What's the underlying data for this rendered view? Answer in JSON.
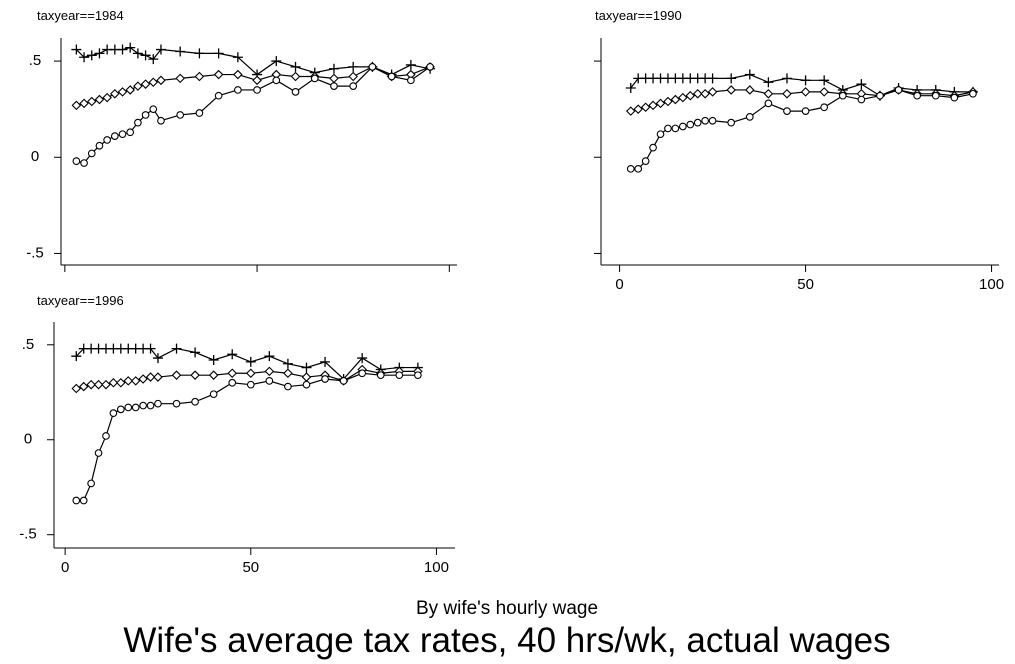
{
  "title": "Wife's average tax rates, 40 hrs/wk, actual wages",
  "xlabel": "By wife's hourly wage",
  "chart_data": [
    {
      "type": "line",
      "title": "taxyear==1984",
      "x": [
        3,
        5,
        7,
        9,
        11,
        13,
        15,
        17,
        19,
        21,
        23,
        25,
        30,
        35,
        40,
        45,
        50,
        55,
        60,
        65,
        70,
        75,
        80,
        85,
        90,
        95
      ],
      "series": [
        {
          "color": "#000000",
          "marker": "plus",
          "values": [
            0.56,
            0.52,
            0.53,
            0.54,
            0.56,
            0.56,
            0.56,
            0.57,
            0.54,
            0.53,
            0.51,
            0.56,
            0.55,
            0.54,
            0.54,
            0.52,
            0.43,
            0.5,
            0.47,
            0.44,
            0.46,
            0.47,
            0.47,
            0.43,
            0.48,
            0.46
          ]
        },
        {
          "color": "#000000",
          "marker": "diamond",
          "values": [
            0.27,
            0.28,
            0.29,
            0.3,
            0.31,
            0.33,
            0.34,
            0.35,
            0.37,
            0.38,
            0.39,
            0.4,
            0.41,
            0.42,
            0.43,
            0.43,
            0.4,
            0.43,
            0.42,
            0.42,
            0.41,
            0.42,
            0.47,
            0.42,
            0.43,
            0.47
          ]
        },
        {
          "color": "#000000",
          "marker": "circle",
          "values": [
            -0.02,
            -0.03,
            0.02,
            0.06,
            0.09,
            0.11,
            0.12,
            0.13,
            0.18,
            0.22,
            0.25,
            0.19,
            0.22,
            0.23,
            0.32,
            0.35,
            0.35,
            0.4,
            0.34,
            0.41,
            0.37,
            0.37,
            0.47,
            0.42,
            0.4,
            0.47
          ]
        }
      ],
      "xlim": [
        -1,
        102
      ],
      "ylim": [
        -0.56,
        0.62
      ],
      "xticks": [
        0,
        50,
        100
      ],
      "xtick_labels": false,
      "yticks": [
        {
          "value": -0.5,
          "label": "-.5"
        },
        0,
        {
          "value": 0.5,
          "label": ".5"
        }
      ],
      "ytick_labels": true
    },
    {
      "type": "line",
      "title": "taxyear==1990",
      "x": [
        3,
        5,
        7,
        9,
        11,
        13,
        15,
        17,
        19,
        21,
        23,
        25,
        30,
        35,
        40,
        45,
        50,
        55,
        60,
        65,
        70,
        75,
        80,
        85,
        90,
        95
      ],
      "series": [
        {
          "color": "#000000",
          "marker": "plus",
          "values": [
            0.36,
            0.41,
            0.41,
            0.41,
            0.41,
            0.41,
            0.41,
            0.41,
            0.41,
            0.41,
            0.41,
            0.41,
            0.41,
            0.43,
            0.39,
            0.41,
            0.4,
            0.4,
            0.35,
            0.38,
            0.32,
            0.36,
            0.35,
            0.35,
            0.34,
            0.34
          ]
        },
        {
          "color": "#000000",
          "marker": "diamond",
          "values": [
            0.24,
            0.25,
            0.26,
            0.27,
            0.28,
            0.29,
            0.3,
            0.31,
            0.32,
            0.33,
            0.33,
            0.34,
            0.35,
            0.35,
            0.33,
            0.33,
            0.34,
            0.34,
            0.33,
            0.33,
            0.32,
            0.35,
            0.33,
            0.33,
            0.32,
            0.34
          ]
        },
        {
          "color": "#000000",
          "marker": "circle",
          "values": [
            -0.06,
            -0.06,
            -0.02,
            0.05,
            0.12,
            0.15,
            0.15,
            0.16,
            0.17,
            0.18,
            0.19,
            0.19,
            0.18,
            0.21,
            0.28,
            0.24,
            0.24,
            0.26,
            0.32,
            0.3,
            0.32,
            0.35,
            0.32,
            0.32,
            0.31,
            0.33
          ]
        }
      ],
      "xlim": [
        -5,
        102
      ],
      "ylim": [
        -0.56,
        0.62
      ],
      "xticks": [
        0,
        50,
        100
      ],
      "xtick_labels": true,
      "yticks": [
        -0.5,
        0,
        0.5
      ],
      "ytick_labels": false
    },
    {
      "type": "line",
      "title": "taxyear==1996",
      "x": [
        3,
        5,
        7,
        9,
        11,
        13,
        15,
        17,
        19,
        21,
        23,
        25,
        30,
        35,
        40,
        45,
        50,
        55,
        60,
        65,
        70,
        75,
        80,
        85,
        90,
        95
      ],
      "series": [
        {
          "color": "#000000",
          "marker": "plus",
          "values": [
            0.44,
            0.48,
            0.48,
            0.48,
            0.48,
            0.48,
            0.48,
            0.48,
            0.48,
            0.48,
            0.48,
            0.43,
            0.48,
            0.46,
            0.42,
            0.45,
            0.41,
            0.44,
            0.4,
            0.38,
            0.41,
            0.32,
            0.43,
            0.37,
            0.38,
            0.38
          ]
        },
        {
          "color": "#000000",
          "marker": "diamond",
          "values": [
            0.27,
            0.28,
            0.29,
            0.29,
            0.29,
            0.3,
            0.3,
            0.31,
            0.31,
            0.32,
            0.33,
            0.33,
            0.34,
            0.34,
            0.34,
            0.35,
            0.35,
            0.36,
            0.35,
            0.33,
            0.34,
            0.31,
            0.37,
            0.35,
            0.36,
            0.36
          ]
        },
        {
          "color": "#000000",
          "marker": "circle",
          "values": [
            -0.32,
            -0.32,
            -0.23,
            -0.07,
            0.02,
            0.14,
            0.16,
            0.17,
            0.17,
            0.18,
            0.18,
            0.19,
            0.19,
            0.2,
            0.24,
            0.3,
            0.29,
            0.31,
            0.28,
            0.29,
            0.32,
            0.31,
            0.35,
            0.34,
            0.34,
            0.34
          ]
        }
      ],
      "xlim": [
        -3,
        105
      ],
      "ylim": [
        -0.57,
        0.62
      ],
      "xticks": [
        0,
        50,
        100
      ],
      "xtick_labels": true,
      "yticks": [
        {
          "value": -0.5,
          "label": "-.5"
        },
        0,
        {
          "value": 0.5,
          "label": ".5"
        }
      ],
      "ytick_labels": true
    }
  ]
}
